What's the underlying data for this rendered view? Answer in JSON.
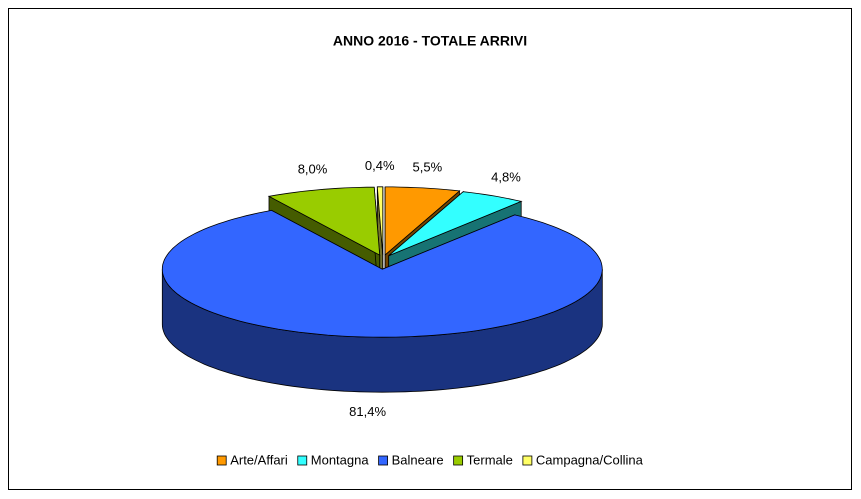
{
  "chart_data": {
    "type": "pie",
    "title": "ANNO 2016 - TOTALE ARRIVI",
    "categories": [
      "Arte/Affari",
      "Montagna",
      "Balneare",
      "Termale",
      "Campagna/Collina"
    ],
    "values": [
      5.5,
      4.8,
      81.4,
      8.0,
      0.4
    ],
    "value_labels": [
      "5,5%",
      "4,8%",
      "81,4%",
      "8,0%",
      "0,4%"
    ],
    "colors": [
      "#ff9900",
      "#33ffff",
      "#3366ff",
      "#99cc00",
      "#ffff66"
    ],
    "legend": "bottom",
    "three_d": true
  }
}
